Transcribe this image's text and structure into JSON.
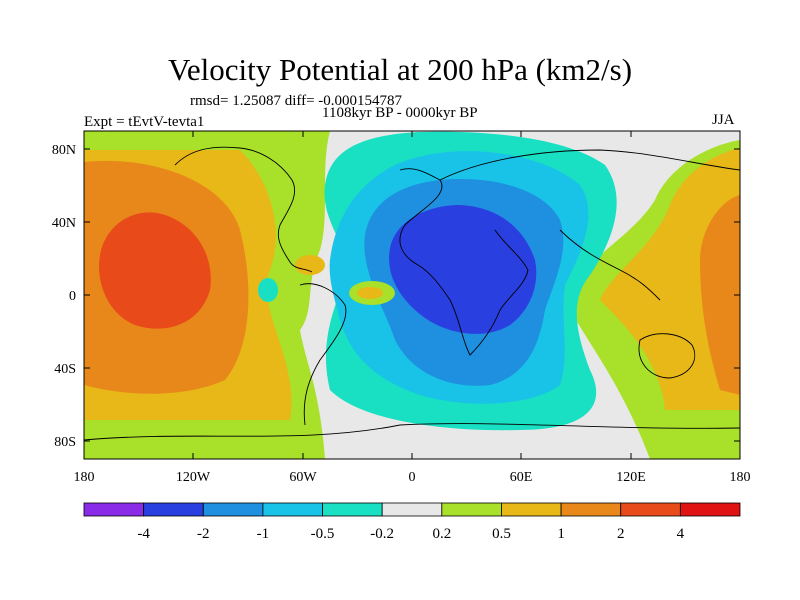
{
  "title": "Velocity Potential at 200 hPa (km2/s)",
  "stats_line": "rmsd= 1.25087 diff= -0.000154787",
  "period_line": "1108kyr BP - 0000kyr BP",
  "experiment_line": "Expt = tEvtV-tevta1",
  "season": "JJA",
  "map": {
    "projection": "cylindrical-equidistant",
    "lon_range": [
      -180,
      180
    ],
    "lat_range": [
      -90,
      90
    ],
    "x_ticks": [
      "180",
      "120W",
      "60W",
      "0",
      "60E",
      "120E",
      "180"
    ],
    "y_ticks": [
      "80N",
      "40N",
      "0",
      "40S",
      "80S"
    ],
    "features": [
      "coastlines"
    ]
  },
  "colorbar": {
    "levels": [
      "-4",
      "-2",
      "-1",
      "-0.5",
      "-0.2",
      "0.2",
      "0.5",
      "1",
      "2",
      "4"
    ],
    "colors": [
      "#8a2be8",
      "#2a3fe0",
      "#1f8fe0",
      "#19c3e8",
      "#19e0c3",
      "#e8e8e8",
      "#a8e02a",
      "#e8b818",
      "#e8881a",
      "#e84a1a",
      "#e01212"
    ]
  }
}
